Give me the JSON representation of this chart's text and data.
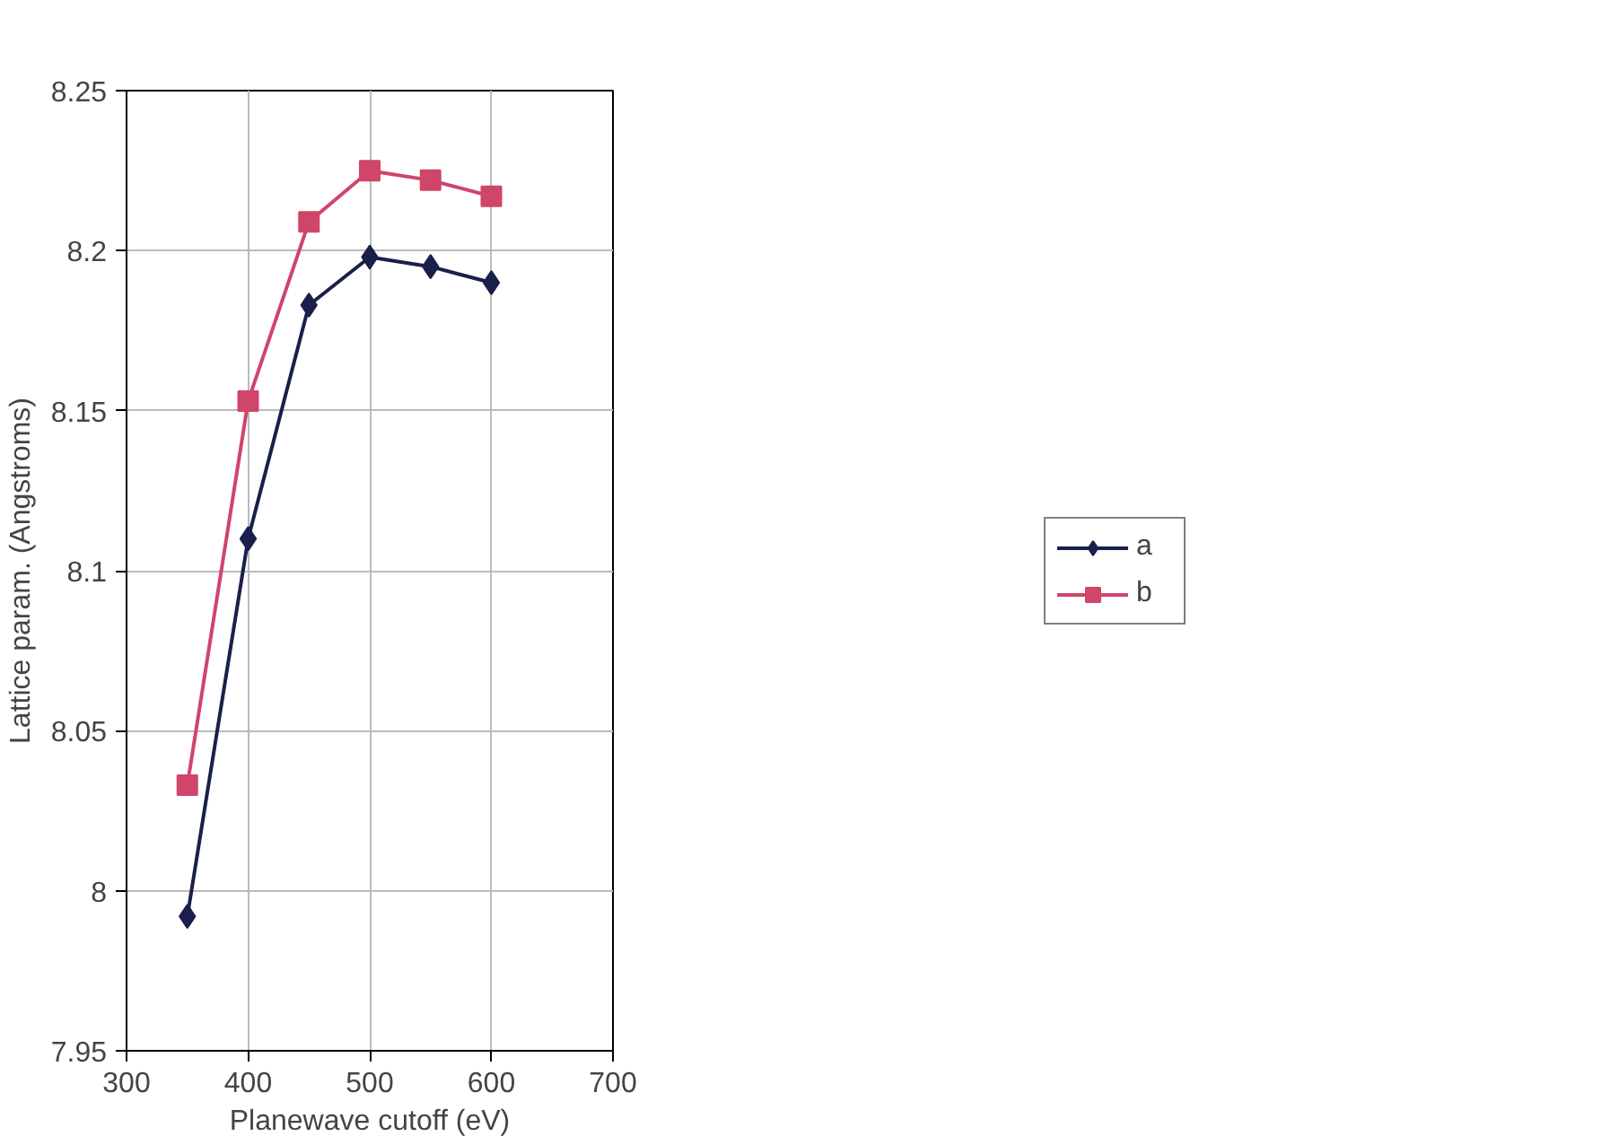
{
  "chart_data": {
    "type": "line",
    "xlabel": "Planewave cutoff (eV)",
    "ylabel": "Lattice param. (Angstroms)",
    "x": [
      350,
      400,
      450,
      500,
      550,
      600
    ],
    "series": [
      {
        "name": "a",
        "color": "#1a1f4b",
        "marker": "diamond",
        "values": [
          7.992,
          8.11,
          8.183,
          8.198,
          8.195,
          8.19
        ]
      },
      {
        "name": "b",
        "color": "#d0456a",
        "marker": "square",
        "values": [
          8.033,
          8.153,
          8.209,
          8.225,
          8.222,
          8.217
        ]
      }
    ],
    "xlim": [
      300,
      700
    ],
    "xticks": [
      300,
      400,
      500,
      600,
      700
    ],
    "ylim": [
      7.95,
      8.25
    ],
    "yticks": [
      {
        "value": 7.95,
        "label": "7.95"
      },
      {
        "value": 8,
        "label": "8"
      },
      {
        "value": 8.05,
        "label": "8.05"
      },
      {
        "value": 8.1,
        "label": "8.1"
      },
      {
        "value": 8.15,
        "label": "8.15"
      },
      {
        "value": 8.2,
        "label": "8.2"
      },
      {
        "value": 8.25,
        "label": "8.25"
      }
    ],
    "grid": true,
    "legend": "right",
    "line_style": "solid"
  }
}
